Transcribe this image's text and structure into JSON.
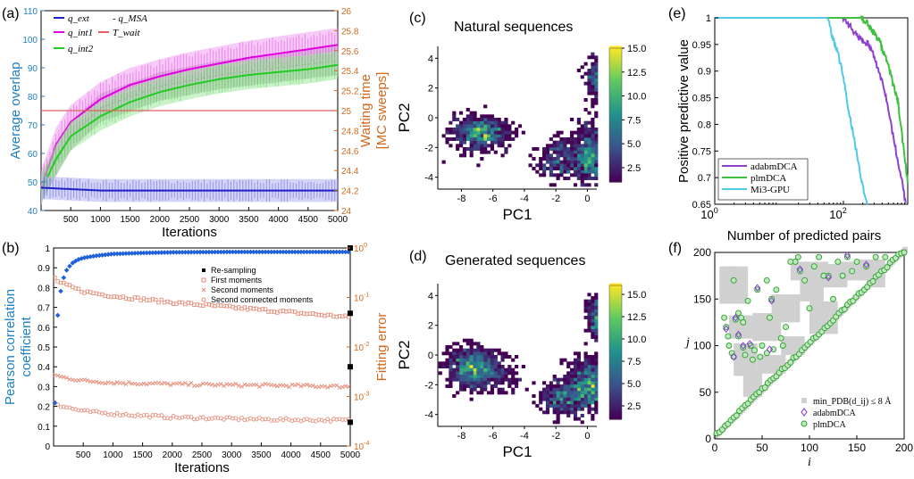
{
  "figure": {
    "panels": [
      {
        "id": "a",
        "label": "(a)"
      },
      {
        "id": "b",
        "label": "(b)"
      },
      {
        "id": "c",
        "label": "(c)",
        "title": "Natural sequences"
      },
      {
        "id": "d",
        "label": "(d)",
        "title": "Generated sequences"
      },
      {
        "id": "e",
        "label": "(e)"
      },
      {
        "id": "f",
        "label": "(f)"
      }
    ]
  },
  "chart_data": [
    {
      "panel": "a",
      "type": "line",
      "xlabel": "Iterations",
      "ylabel": "Average overlap",
      "ylabel_right_1": "Waiting time",
      "ylabel_right_2": "[MC sweeps]",
      "xlim": [
        0,
        5000
      ],
      "ylim": [
        40,
        110
      ],
      "ylim_right": [
        24,
        26
      ],
      "xticks": [
        500,
        1000,
        1500,
        2000,
        2500,
        3000,
        3500,
        4000,
        4500,
        5000
      ],
      "yticks": [
        40,
        50,
        60,
        70,
        80,
        90,
        100,
        110
      ],
      "yticks_right": [
        "24",
        "24.2",
        "24.4",
        "24.6",
        "24.8",
        "25",
        "25.2",
        "25.4",
        "25.6",
        "25.8",
        "26"
      ],
      "legend": [
        "q_ext",
        "- q_MSA",
        "q_int1",
        "T_wait",
        "q_int2"
      ],
      "colors": {
        "q_ext": "#1f1fc8",
        "q_int1": "#e000e0",
        "q_int2": "#22cc22",
        "T_wait": "#e06060",
        "left_axis": "#1f7fc0",
        "right_axis": "#d2691e"
      },
      "series": [
        {
          "name": "q_ext",
          "x": [
            0,
            500,
            1000,
            2000,
            3000,
            4000,
            5000
          ],
          "y": [
            48,
            47.5,
            47,
            47,
            47,
            47,
            47
          ],
          "band": 4
        },
        {
          "name": "q_int1",
          "x": [
            0,
            250,
            500,
            1000,
            1500,
            2000,
            2500,
            3000,
            3500,
            4000,
            4500,
            5000
          ],
          "y": [
            48,
            63,
            71,
            79,
            84,
            87,
            89.5,
            91.5,
            93.5,
            95,
            96.5,
            98
          ],
          "band": 6
        },
        {
          "name": "q_int2",
          "x": [
            0,
            250,
            500,
            1000,
            1500,
            2000,
            2500,
            3000,
            3500,
            4000,
            4500,
            5000
          ],
          "y": [
            47,
            58,
            66,
            73,
            78,
            81.5,
            84,
            86,
            87.5,
            88.5,
            89.5,
            91
          ],
          "band": 5
        },
        {
          "name": "q_MSA",
          "x": [
            0,
            500,
            1000,
            2000,
            3000,
            4000,
            5000
          ],
          "y": [
            48,
            66,
            76,
            83.5,
            87.5,
            90,
            92.5
          ],
          "band": 5
        },
        {
          "name": "T_wait",
          "x": [
            0,
            5000
          ],
          "y": [
            25,
            25
          ]
        }
      ]
    },
    {
      "panel": "b",
      "type": "scatter",
      "xlabel": "Iterations",
      "ylabel_1": "Pearson correlation",
      "ylabel_2": "coefficient",
      "ylabel_right": "Fitting error",
      "xlim": [
        0,
        5000
      ],
      "ylim": [
        0,
        1
      ],
      "ylim_right_log10": [
        -4,
        0
      ],
      "xticks": [
        500,
        1000,
        1500,
        2000,
        2500,
        3000,
        3500,
        4000,
        4500,
        5000
      ],
      "yticks": [
        0,
        0.1,
        0.2,
        0.3,
        0.4,
        0.5,
        0.6,
        0.7,
        0.8,
        0.9,
        1
      ],
      "yticks_right": [
        "10^-4",
        "10^-3",
        "10^-2",
        "10^-1",
        "10^0"
      ],
      "legend": [
        "Re-sampling",
        "First moments",
        "Second moments",
        "Second connected moments"
      ],
      "resampling_x": [
        5000,
        5000,
        5000,
        5000
      ],
      "resampling_log": [
        0,
        -1.32,
        -2.4,
        -3.52
      ],
      "pearson": {
        "x": [
          10,
          50,
          100,
          150,
          200,
          300,
          400,
          500,
          700,
          1000,
          1500,
          2000,
          3000,
          4000,
          5000
        ],
        "y": [
          0.09,
          0.6,
          0.75,
          0.83,
          0.88,
          0.92,
          0.94,
          0.95,
          0.96,
          0.97,
          0.975,
          0.978,
          0.98,
          0.98,
          0.98
        ]
      },
      "first_moments_log": {
        "x": [
          10,
          100,
          500,
          1000,
          2000,
          3000,
          4000,
          5000
        ],
        "y": [
          -0.6,
          -0.7,
          -0.88,
          -0.97,
          -1.1,
          -1.2,
          -1.3,
          -1.4
        ]
      },
      "second_moments_log": {
        "x": [
          10,
          100,
          500,
          1000,
          2000,
          3000,
          4000,
          5000
        ],
        "y": [
          -2.55,
          -2.6,
          -2.68,
          -2.72,
          -2.75,
          -2.77,
          -2.78,
          -2.8
        ]
      },
      "second_connected_log": {
        "x": [
          10,
          100,
          500,
          1000,
          2000,
          3000,
          4000,
          5000
        ],
        "y": [
          -3.1,
          -3.18,
          -3.3,
          -3.35,
          -3.42,
          -3.45,
          -3.47,
          -3.48
        ]
      }
    },
    {
      "panel": "c",
      "type": "heatmap",
      "title": "Natural sequences",
      "xlabel": "PC1",
      "ylabel": "PC2",
      "xlim": [
        -9.5,
        0.6
      ],
      "ylim": [
        -4.8,
        4.8
      ],
      "xticks": [
        -8,
        -6,
        -4,
        -2,
        0
      ],
      "yticks": [
        -4,
        -2,
        0,
        2,
        4
      ],
      "colorbar": {
        "ticks": [
          "2.5",
          "5.0",
          "7.5",
          "10.0",
          "12.5",
          "15.0"
        ],
        "min": 1,
        "max": 15
      },
      "clusters": [
        {
          "cx": -6.8,
          "cy": -1.0,
          "sx": 0.9,
          "sy": 0.55,
          "n": 650
        },
        {
          "cx": 0.2,
          "cy": -2.5,
          "sx": 0.6,
          "sy": 1.0,
          "n": 650
        },
        {
          "cx": -1.6,
          "cy": -2.9,
          "sx": 0.8,
          "sy": 0.55,
          "n": 250
        },
        {
          "cx": 0.8,
          "cy": 2.6,
          "sx": 0.4,
          "sy": 0.75,
          "n": 300
        },
        {
          "cx": -1.9,
          "cy": -1.9,
          "sx": 0.3,
          "sy": 0.3,
          "n": 40
        }
      ]
    },
    {
      "panel": "d",
      "type": "heatmap",
      "title": "Generated sequences",
      "xlabel": "PC1",
      "ylabel": "PC2",
      "xlim": [
        -9.5,
        0.6
      ],
      "ylim": [
        -4.8,
        4.8
      ],
      "xticks": [
        -8,
        -6,
        -4,
        -2,
        0
      ],
      "yticks": [
        -4,
        -2,
        0,
        2,
        4
      ],
      "colorbar": {
        "ticks": [
          "2.5",
          "5.0",
          "7.5",
          "10.0",
          "12.5",
          "15.0"
        ],
        "min": 1,
        "max": 16
      },
      "clusters": [
        {
          "cx": -7.3,
          "cy": -0.9,
          "sx": 0.8,
          "sy": 0.7,
          "n": 800
        },
        {
          "cx": 0.1,
          "cy": -2.0,
          "sx": 0.7,
          "sy": 0.9,
          "n": 800
        },
        {
          "cx": -1.6,
          "cy": -2.9,
          "sx": 0.7,
          "sy": 0.55,
          "n": 350
        },
        {
          "cx": 0.7,
          "cy": 2.5,
          "sx": 0.35,
          "sy": 0.8,
          "n": 300
        },
        {
          "cx": -5.5,
          "cy": -1.5,
          "sx": 0.6,
          "sy": 0.6,
          "n": 100
        }
      ]
    },
    {
      "panel": "e",
      "type": "line",
      "xlabel": "Number of predicted pairs",
      "ylabel": "Positive predictive value",
      "xlim_log10": [
        0,
        3
      ],
      "ylim": [
        0.65,
        1
      ],
      "xticks": [
        "10^0",
        "10^2"
      ],
      "yticks": [
        0.65,
        0.7,
        0.75,
        0.8,
        0.85,
        0.9,
        0.95,
        1
      ],
      "legend": [
        "adabmDCA",
        "plmDCA",
        "Mi3-GPU"
      ],
      "colors": {
        "adabmDCA": "#9040d0",
        "plmDCA": "#40c040",
        "Mi3-GPU": "#50c8e8"
      },
      "series": [
        {
          "name": "adabmDCA",
          "logx": [
            0,
            2.0,
            2.1,
            2.25,
            2.4,
            2.5,
            2.65,
            2.8,
            2.9,
            2.97
          ],
          "y": [
            1,
            1,
            0.985,
            0.96,
            0.95,
            0.92,
            0.86,
            0.76,
            0.7,
            0.65
          ]
        },
        {
          "name": "plmDCA",
          "logx": [
            0,
            2.27,
            2.35,
            2.45,
            2.55,
            2.7,
            2.85,
            2.93,
            3.0
          ],
          "y": [
            1,
            1,
            0.995,
            0.975,
            0.96,
            0.91,
            0.84,
            0.76,
            0.69
          ]
        },
        {
          "name": "Mi3-GPU",
          "logx": [
            0,
            1.75,
            1.82,
            1.9,
            1.98,
            2.05,
            2.12,
            2.2,
            2.27,
            2.33,
            2.38
          ],
          "y": [
            1,
            1,
            0.97,
            0.94,
            0.9,
            0.85,
            0.8,
            0.75,
            0.7,
            0.67,
            0.65
          ]
        }
      ]
    },
    {
      "panel": "f",
      "type": "scatter",
      "xlabel": "i",
      "ylabel": "j",
      "xlim": [
        0,
        200
      ],
      "ylim": [
        0,
        200
      ],
      "xticks": [
        0,
        50,
        100,
        150,
        200
      ],
      "yticks": [
        0,
        50,
        100,
        150,
        200
      ],
      "legend": [
        "min_PDB(d_ij) ≤ 8 Å",
        "adabmDCA",
        "plmDCA"
      ],
      "colors": {
        "contacts": "#d0d0d0",
        "adabmDCA": "#8a2be2",
        "plmDCA": "#2ca02c"
      },
      "plmDCA_pairs": [
        [
          10,
          130
        ],
        [
          12,
          120
        ],
        [
          14,
          110
        ],
        [
          15,
          100
        ],
        [
          18,
          92
        ],
        [
          20,
          88
        ],
        [
          22,
          128
        ],
        [
          25,
          110
        ],
        [
          28,
          130
        ],
        [
          30,
          98
        ],
        [
          32,
          90
        ],
        [
          35,
          148
        ],
        [
          38,
          100
        ],
        [
          40,
          85
        ],
        [
          42,
          95
        ],
        [
          45,
          160
        ],
        [
          48,
          88
        ],
        [
          50,
          100
        ],
        [
          55,
          92
        ],
        [
          58,
          130
        ],
        [
          60,
          150
        ],
        [
          65,
          160
        ],
        [
          70,
          108
        ],
        [
          75,
          120
        ],
        [
          85,
          190
        ],
        [
          90,
          180
        ],
        [
          95,
          170
        ],
        [
          100,
          140
        ],
        [
          105,
          185
        ],
        [
          110,
          195
        ],
        [
          115,
          175
        ],
        [
          120,
          175
        ],
        [
          125,
          150
        ],
        [
          130,
          190
        ],
        [
          135,
          175
        ],
        [
          140,
          195
        ],
        [
          145,
          180
        ],
        [
          150,
          190
        ],
        [
          160,
          185
        ],
        [
          170,
          195
        ],
        [
          180,
          195
        ],
        [
          20,
          170
        ],
        [
          25,
          135
        ],
        [
          30,
          125
        ],
        [
          62,
          96
        ],
        [
          72,
          100
        ],
        [
          55,
          170
        ],
        [
          80,
          190
        ],
        [
          88,
          195
        ]
      ],
      "adabmDCA_pairs": [
        [
          12,
          118
        ],
        [
          20,
          88
        ],
        [
          25,
          112
        ],
        [
          30,
          100
        ],
        [
          45,
          162
        ],
        [
          60,
          148
        ],
        [
          90,
          182
        ],
        [
          120,
          173
        ],
        [
          140,
          197
        ],
        [
          160,
          187
        ],
        [
          22,
          130
        ],
        [
          37,
          102
        ],
        [
          58,
          96
        ]
      ],
      "contact_patches": [
        [
          5,
          165,
          30,
          40
        ],
        [
          15,
          120,
          30,
          25
        ],
        [
          20,
          85,
          25,
          35
        ],
        [
          40,
          120,
          30,
          30
        ],
        [
          60,
          140,
          30,
          30
        ],
        [
          80,
          180,
          40,
          20
        ],
        [
          90,
          160,
          25,
          25
        ],
        [
          100,
          130,
          30,
          35
        ],
        [
          110,
          175,
          30,
          25
        ],
        [
          130,
          180,
          30,
          20
        ],
        [
          150,
          185,
          30,
          15
        ],
        [
          30,
          60,
          20,
          30
        ],
        [
          45,
          80,
          30,
          20
        ],
        [
          70,
          100,
          25,
          20
        ],
        [
          10,
          175,
          15,
          20
        ],
        [
          160,
          170,
          20,
          15
        ]
      ]
    }
  ]
}
